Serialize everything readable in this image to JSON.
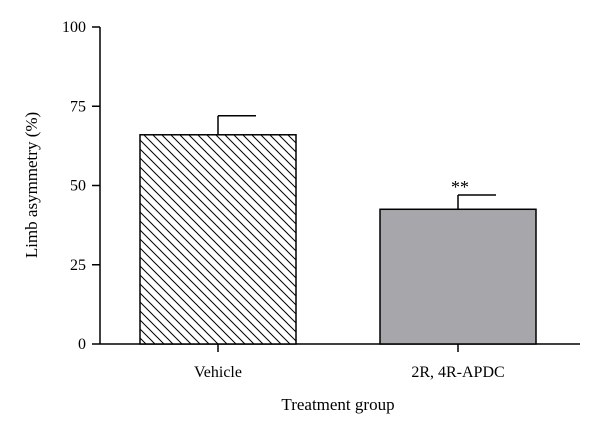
{
  "chart_data": {
    "type": "bar",
    "categories": [
      "Vehicle",
      "2R, 4R-APDC"
    ],
    "values": [
      66,
      42.5
    ],
    "errors": [
      6,
      4.5
    ],
    "bar_styles": [
      {
        "fill": "hatch",
        "color": "#ffffff"
      },
      {
        "fill": "solid",
        "color": "#a6a6ab"
      }
    ],
    "xlabel": "Treatment group",
    "ylabel": "Limb asymmetry (%)",
    "ylim": [
      0,
      100
    ],
    "yticks": [
      0,
      25,
      50,
      75,
      100
    ],
    "grid": false,
    "annotations": [
      {
        "category_index": 1,
        "text": "**"
      }
    ]
  }
}
